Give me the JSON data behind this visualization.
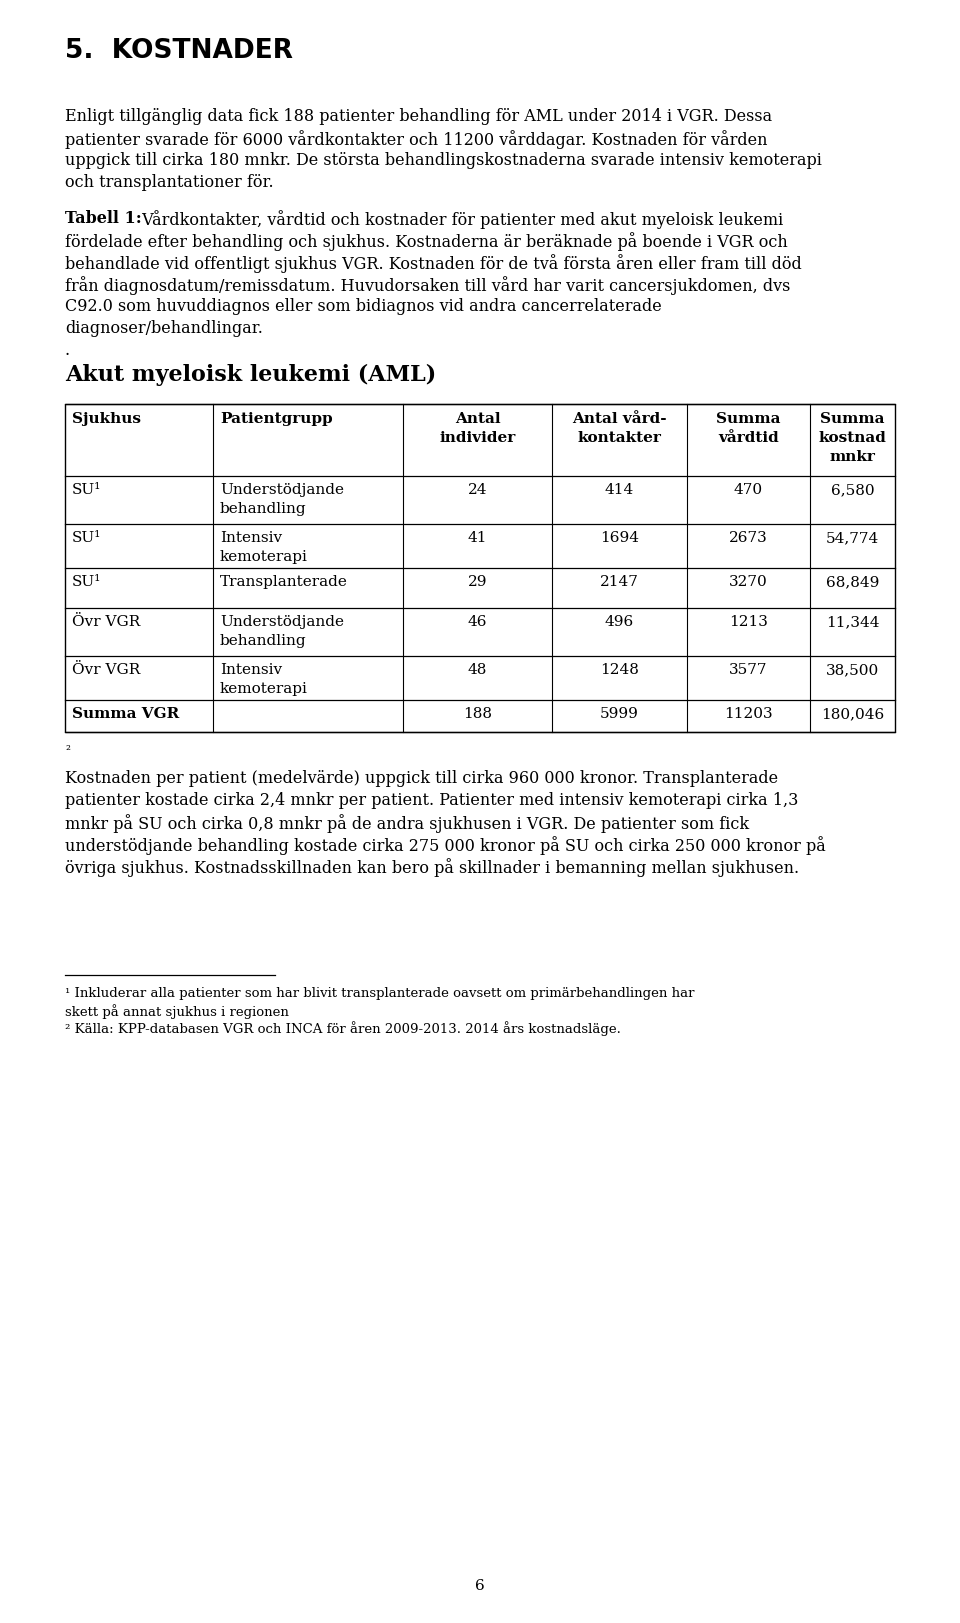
{
  "title": "5.  KOSTNADER",
  "section_heading": "Akut myeloisk leukemi (AML)",
  "col_headers": [
    "Sjukhus",
    "Patientgrupp",
    "Antal\nindivider",
    "Antal vård-\nkontakter",
    "Summa\nvårdtid",
    "Summa\nkostnad\nmnkr"
  ],
  "table_data": [
    [
      "SU¹",
      "Understödjande\nbehandling",
      "24",
      "414",
      "470",
      "6,580"
    ],
    [
      "SU¹",
      "Intensiv\nkemoterapi",
      "41",
      "1694",
      "2673",
      "54,774"
    ],
    [
      "SU¹",
      "Transplanterade",
      "29",
      "2147",
      "3270",
      "68,849"
    ],
    [
      "Övr VGR",
      "Understödjande\nbehandling",
      "46",
      "496",
      "1213",
      "11,344"
    ],
    [
      "Övr VGR",
      "Intensiv\nkemoterapi",
      "48",
      "1248",
      "3577",
      "38,500"
    ],
    [
      "Summa VGR",
      "",
      "188",
      "5999",
      "11203",
      "180,046"
    ]
  ],
  "para1_lines": [
    "Enligt tillgänglig data fick 188 patienter behandling för AML under 2014 i VGR. Dessa",
    "patienter svarade för 6000 vårdkontakter och 11200 vårddagar. Kostnaden för vården",
    "uppgick till cirka 180 mnkr. De största behandlingskostnaderna svarade intensiv kemoterapi",
    "och transplantationer för."
  ],
  "tabell_label": "Tabell 1:",
  "tabell_rest": [
    " Vårdkontakter, vårdtid och kostnader för patienter med akut myeloisk leukemi",
    "fördelade efter behandling och sjukhus. Kostnaderna är beräknade på boende i VGR och",
    "behandlade vid offentligt sjukhus VGR. Kostnaden för de två första åren eller fram till död",
    "från diagnosdatum/remissdatum. Huvudorsaken till vård har varit cancersjukdomen, dvs",
    "C92.0 som huvuddiagnos eller som bidiagnos vid andra cancerrelaterade",
    "diagnoser/behandlingar."
  ],
  "para2_lines": [
    "Kostnaden per patient (medelvärde) uppgick till cirka 960 000 kronor. Transplanterade",
    "patienter kostade cirka 2,4 mnkr per patient. Patienter med intensiv kemoterapi cirka 1,3",
    "mnkr på SU och cirka 0,8 mnkr på de andra sjukhusen i VGR. De patienter som fick",
    "understödjande behandling kostade cirka 275 000 kronor på SU och cirka 250 000 kronor på",
    "övriga sjukhus. Kostnadsskillnaden kan bero på skillnader i bemanning mellan sjukhusen."
  ],
  "fn1_lines": [
    "¹ Inkluderar alla patienter som har blivit transplanterade oavsett om primärbehandlingen har",
    "skett på annat sjukhus i regionen"
  ],
  "fn2_line": "² Källa: KPP-databasen VGR och INCA för åren 2009-2013. 2014 års kostnadsläge.",
  "page_number": "6",
  "bg_color": "#ffffff"
}
